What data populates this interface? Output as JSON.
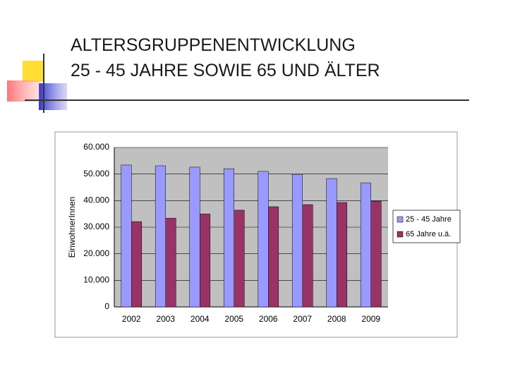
{
  "chart_data": {
    "type": "bar",
    "title": "ALTERSGRUPPENENTWICKLUNG",
    "subtitle": "25 - 45 JAHRE SOWIE 65 UND ÄLTER",
    "y_label": "EinwohnerInnen",
    "categories": [
      "2002",
      "2003",
      "2004",
      "2005",
      "2006",
      "2007",
      "2008",
      "2009"
    ],
    "series": [
      {
        "name": "25 - 45 Jahre",
        "color": "#9999ff",
        "values": [
          53400,
          53100,
          52600,
          52000,
          51000,
          49900,
          48300,
          46700
        ]
      },
      {
        "name": "65 Jahre u.ä.",
        "color": "#993366",
        "values": [
          32100,
          33400,
          35000,
          36400,
          37700,
          38500,
          39300,
          39800
        ]
      }
    ],
    "ylim": [
      0,
      60000
    ],
    "yticks": [
      0,
      {
        "value": 10000,
        "label": "10.000"
      },
      {
        "value": 20000,
        "label": "20.000"
      },
      {
        "value": 30000,
        "label": "30.000"
      },
      {
        "value": 40000,
        "label": "40.000"
      },
      {
        "value": 50000,
        "label": "50.000"
      },
      {
        "value": 60000,
        "label": "60.000"
      }
    ],
    "grid": true,
    "legend": "right"
  }
}
